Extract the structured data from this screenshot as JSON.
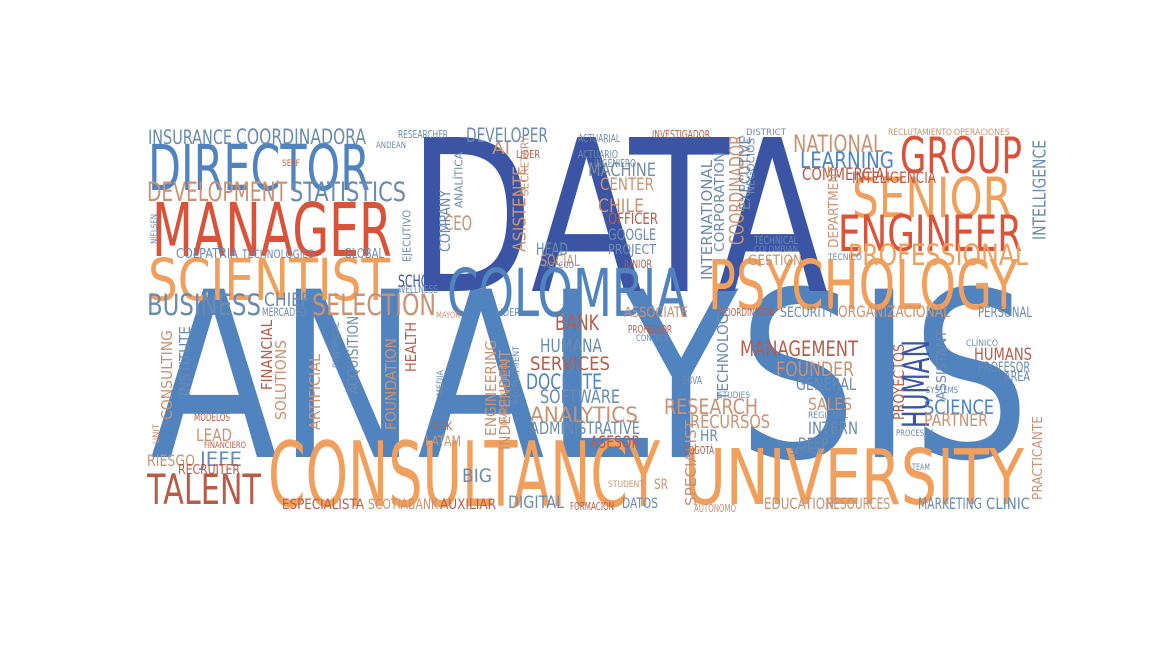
{
  "palette": {
    "navy": "#3b54a3",
    "blue": "#5183bf",
    "steel": "#6b8ab0",
    "orange": "#f0a05c",
    "red": "#d9533a",
    "brown": "#b85c4a",
    "tan": "#c99273",
    "slate": "#7a8ea8"
  },
  "words": [
    {
      "text": "ANALYSIS",
      "color": "blue"
    },
    {
      "text": "DATA",
      "color": "navy"
    },
    {
      "text": "CONSULTANCY",
      "color": "orange"
    },
    {
      "text": "UNIVERSITY",
      "color": "orange"
    },
    {
      "text": "COLOMBIA",
      "color": "blue"
    },
    {
      "text": "PSYCHOLOGY",
      "color": "orange"
    },
    {
      "text": "MANAGER",
      "color": "red"
    },
    {
      "text": "DIRECTOR",
      "color": "blue"
    },
    {
      "text": "SCIENTIST",
      "color": "orange"
    },
    {
      "text": "GROUP",
      "color": "red"
    },
    {
      "text": "SENIOR",
      "color": "orange"
    },
    {
      "text": "ENGINEER",
      "color": "red"
    },
    {
      "text": "TALENT",
      "color": "brown"
    },
    {
      "text": "HUMAN",
      "color": "navy"
    },
    {
      "text": "PROFESSIONAL",
      "color": "orange"
    },
    {
      "text": "BUSINESS",
      "color": "steel"
    },
    {
      "text": "SELECTION",
      "color": "tan"
    },
    {
      "text": "DEVELOPMENT",
      "color": "tan"
    },
    {
      "text": "STATISTICS",
      "color": "steel"
    },
    {
      "text": "INSURANCE",
      "color": "steel"
    },
    {
      "text": "COORDINADORA",
      "color": "steel"
    },
    {
      "text": "NATIONAL",
      "color": "tan"
    },
    {
      "text": "LEARNING",
      "color": "blue"
    },
    {
      "text": "COMMERCIAL",
      "color": "brown"
    },
    {
      "text": "INTELIGENCIA",
      "color": "brown"
    },
    {
      "text": "INTELLIGENCE",
      "color": "steel"
    },
    {
      "text": "MACHINE",
      "color": "slate"
    },
    {
      "text": "CENTER",
      "color": "tan"
    },
    {
      "text": "CHILE",
      "color": "tan"
    },
    {
      "text": "OFFICER",
      "color": "brown"
    },
    {
      "text": "GOOGLE",
      "color": "steel"
    },
    {
      "text": "PROJECT",
      "color": "steel"
    },
    {
      "text": "DEVELOPER",
      "color": "steel"
    },
    {
      "text": "AI",
      "color": "tan"
    },
    {
      "text": "CEO",
      "color": "tan"
    },
    {
      "text": "HEAD",
      "color": "steel"
    },
    {
      "text": "SOCIAL",
      "color": "tan"
    },
    {
      "text": "JUNIOR",
      "color": "brown"
    },
    {
      "text": "GESTION",
      "color": "tan"
    },
    {
      "text": "COORDINADOR",
      "color": "tan"
    },
    {
      "text": "INTERNATIONAL",
      "color": "steel"
    },
    {
      "text": "CORPORATION",
      "color": "steel"
    },
    {
      "text": "EXECUTIVE",
      "color": "steel"
    },
    {
      "text": "ASISTENTE",
      "color": "tan"
    },
    {
      "text": "COMPANY",
      "color": "steel"
    },
    {
      "text": "SCHOOL",
      "color": "navy"
    },
    {
      "text": "CHIEF",
      "color": "steel"
    },
    {
      "text": "BANK",
      "color": "brown"
    },
    {
      "text": "ASSOCIATE",
      "color": "tan"
    },
    {
      "text": "HUMANA",
      "color": "steel"
    },
    {
      "text": "SERVICES",
      "color": "brown"
    },
    {
      "text": "DOCENTE",
      "color": "blue"
    },
    {
      "text": "SOFTWARE",
      "color": "steel"
    },
    {
      "text": "ANALYTICS",
      "color": "tan"
    },
    {
      "text": "ADMINISTRATIVE",
      "color": "steel"
    },
    {
      "text": "ASESOR",
      "color": "brown"
    },
    {
      "text": "LATAM",
      "color": "tan"
    },
    {
      "text": "BIG",
      "color": "steel"
    },
    {
      "text": "DIGITAL",
      "color": "steel"
    },
    {
      "text": "DATOS",
      "color": "steel"
    },
    {
      "text": "RESEARCH",
      "color": "tan"
    },
    {
      "text": "RECURSOS",
      "color": "tan"
    },
    {
      "text": "MANAGEMENT",
      "color": "brown"
    },
    {
      "text": "FOUNDER",
      "color": "tan"
    },
    {
      "text": "GENERAL",
      "color": "steel"
    },
    {
      "text": "SALES",
      "color": "tan"
    },
    {
      "text": "INTERN",
      "color": "steel"
    },
    {
      "text": "DEEP",
      "color": "steel"
    },
    {
      "text": "SCIENCE",
      "color": "blue"
    },
    {
      "text": "PARTNER",
      "color": "tan"
    },
    {
      "text": "PROYECTOS",
      "color": "brown"
    },
    {
      "text": "HUMANS",
      "color": "brown"
    },
    {
      "text": "PROFESOR",
      "color": "steel"
    },
    {
      "text": "SECURITY",
      "color": "steel"
    },
    {
      "text": "ORGANIZACIONAL",
      "color": "tan"
    },
    {
      "text": "PERSONAL",
      "color": "steel"
    },
    {
      "text": "LEAD",
      "color": "tan"
    },
    {
      "text": "JEFE",
      "color": "steel"
    },
    {
      "text": "RIESGO",
      "color": "tan"
    },
    {
      "text": "HEALTH",
      "color": "brown"
    },
    {
      "text": "FOUNDATION",
      "color": "tan"
    },
    {
      "text": "FINANCIAL",
      "color": "brown"
    },
    {
      "text": "SOLUTIONS",
      "color": "tan"
    },
    {
      "text": "ARTIFICIAL",
      "color": "tan"
    },
    {
      "text": "ACQUISITION",
      "color": "steel"
    },
    {
      "text": "INSTITUTE",
      "color": "steel"
    },
    {
      "text": "CONSULTING",
      "color": "tan"
    },
    {
      "text": "ENGINEERING",
      "color": "tan"
    },
    {
      "text": "INDEPENDENT",
      "color": "tan"
    },
    {
      "text": "TECHNOLOGY",
      "color": "steel"
    },
    {
      "text": "SPECIALIST",
      "color": "tan"
    },
    {
      "text": "ASSISTANT",
      "color": "steel"
    },
    {
      "text": "PRACTICANTE",
      "color": "tan"
    },
    {
      "text": "EDUCATION",
      "color": "tan"
    },
    {
      "text": "RESOURCES",
      "color": "tan"
    },
    {
      "text": "MARKETING",
      "color": "steel"
    },
    {
      "text": "CLINIC",
      "color": "steel"
    },
    {
      "text": "ESPECIALISTA",
      "color": "brown"
    },
    {
      "text": "SCOTIABANK",
      "color": "tan"
    },
    {
      "text": "AUXILIAR",
      "color": "brown"
    },
    {
      "text": "COLPATRIA",
      "color": "steel"
    },
    {
      "text": "TECHNOLOGIES",
      "color": "steel"
    },
    {
      "text": "GLOBAL",
      "color": "steel"
    },
    {
      "text": "MERCADEO",
      "color": "steel"
    },
    {
      "text": "RESEARCHER",
      "color": "steel"
    },
    {
      "text": "ACTUARIAL",
      "color": "steel"
    },
    {
      "text": "ACTUARIO",
      "color": "steel"
    },
    {
      "text": "INVESTIGADOR",
      "color": "brown"
    },
    {
      "text": "INGENIERO",
      "color": "steel"
    },
    {
      "text": "LÍDER",
      "color": "brown"
    },
    {
      "text": "ANDEAN",
      "color": "steel"
    },
    {
      "text": "SELF",
      "color": "brown"
    },
    {
      "text": "DISTRICT",
      "color": "steel"
    },
    {
      "text": "RECLUTAMIENTO",
      "color": "tan"
    },
    {
      "text": "OPERACIONES",
      "color": "tan"
    },
    {
      "text": "TECHNICAL",
      "color": "steel"
    },
    {
      "text": "COLOMBIAN",
      "color": "steel"
    },
    {
      "text": "TÉCNICO",
      "color": "steel"
    },
    {
      "text": "DEPARTMENT",
      "color": "tan"
    },
    {
      "text": "NEGOCIOS",
      "color": "steel"
    },
    {
      "text": "SECRETARY",
      "color": "tan"
    },
    {
      "text": "ANALÍTICA",
      "color": "steel"
    },
    {
      "text": "EJECUTIVO",
      "color": "steel"
    },
    {
      "text": "NIELSEN",
      "color": "steel"
    },
    {
      "text": "WELLNESS",
      "color": "steel"
    },
    {
      "text": "MAYOR",
      "color": "tan"
    },
    {
      "text": "LIDER",
      "color": "steel"
    },
    {
      "text": "COORDINATOR",
      "color": "brown"
    },
    {
      "text": "PROFESSOR",
      "color": "brown"
    },
    {
      "text": "CONTROL",
      "color": "steel"
    },
    {
      "text": "CLÍNICO",
      "color": "steel"
    },
    {
      "text": "AREA",
      "color": "steel"
    },
    {
      "text": "BBVA",
      "color": "steel"
    },
    {
      "text": "REGIONAL",
      "color": "steel"
    },
    {
      "text": "SYSTEMS",
      "color": "steel"
    },
    {
      "text": "STUDIES",
      "color": "steel"
    },
    {
      "text": "SERVICIO",
      "color": "steel"
    },
    {
      "text": "PROCESOS",
      "color": "steel"
    },
    {
      "text": "HR",
      "color": "steel"
    },
    {
      "text": "BOGOTÁ",
      "color": "brown"
    },
    {
      "text": "TEAM",
      "color": "steel"
    },
    {
      "text": "SR",
      "color": "tan"
    },
    {
      "text": "STUDENT",
      "color": "tan"
    },
    {
      "text": "AUTÓNOMO",
      "color": "tan"
    },
    {
      "text": "FORMACIÓN",
      "color": "brown"
    },
    {
      "text": "RISK",
      "color": "brown"
    },
    {
      "text": "MEDIA",
      "color": "steel"
    },
    {
      "text": "FINANCIERO",
      "color": "brown"
    },
    {
      "text": "MODELOS",
      "color": "brown"
    },
    {
      "text": "UNIT",
      "color": "tan"
    },
    {
      "text": "RECRUITER",
      "color": "brown"
    },
    {
      "text": "PONTIFICAL",
      "color": "steel"
    },
    {
      "text": "INVESTIGATIONS",
      "color": "tan"
    },
    {
      "text": "RECRUITMENT",
      "color": "steel"
    },
    {
      "text": "ADECCO",
      "color": "steel"
    }
  ]
}
